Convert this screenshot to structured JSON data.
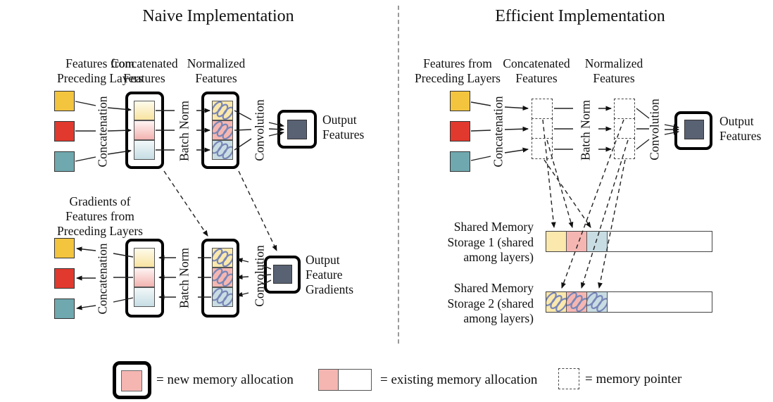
{
  "colors": {
    "yellow": "#F3C43E",
    "red": "#E1392E",
    "teal": "#6FA8AF",
    "pale_yellow": "#FAE8AC",
    "pale_pink": "#F5B6B2",
    "pale_blue": "#C8DDE3",
    "scribble_blue": "#7886B8",
    "dark_slate": "#596273",
    "box_border": "#000000",
    "divider": "#999999"
  },
  "left": {
    "title": "Naive Implementation",
    "labels": {
      "input1": "Features from",
      "input2": "Preceding Layers",
      "concat1": "Concatenated",
      "concat2": "Features",
      "norm1": "Normalized",
      "norm2": "Features",
      "output1": "Output",
      "output2": "Features"
    },
    "ops": {
      "concat": "Concatenation",
      "bn": "Batch Norm",
      "conv": "Convolution"
    },
    "grad": {
      "input1": "Gradients of",
      "input2": "Features from",
      "input3": "Preceding Layers",
      "output1": "Output",
      "output2": "Feature",
      "output3": "Gradients"
    }
  },
  "right": {
    "title": "Efficient Implementation",
    "labels": {
      "input1": "Features from",
      "input2": "Preceding Layers",
      "concat1": "Concatenated",
      "concat2": "Features",
      "norm1": "Normalized",
      "norm2": "Features",
      "output1": "Output",
      "output2": "Features"
    },
    "ops": {
      "concat": "Concatenation",
      "bn": "Batch Norm",
      "conv": "Convolution"
    },
    "storage1": {
      "l1": "Shared Memory",
      "l2": "Storage 1 (shared",
      "l3": "among layers)"
    },
    "storage2": {
      "l1": "Shared Memory",
      "l2": "Storage 2 (shared",
      "l3": "among layers)"
    }
  },
  "legend": {
    "new_memory": "= new memory allocation",
    "existing_memory": "= existing memory allocation",
    "memory_pointer": "= memory pointer"
  }
}
